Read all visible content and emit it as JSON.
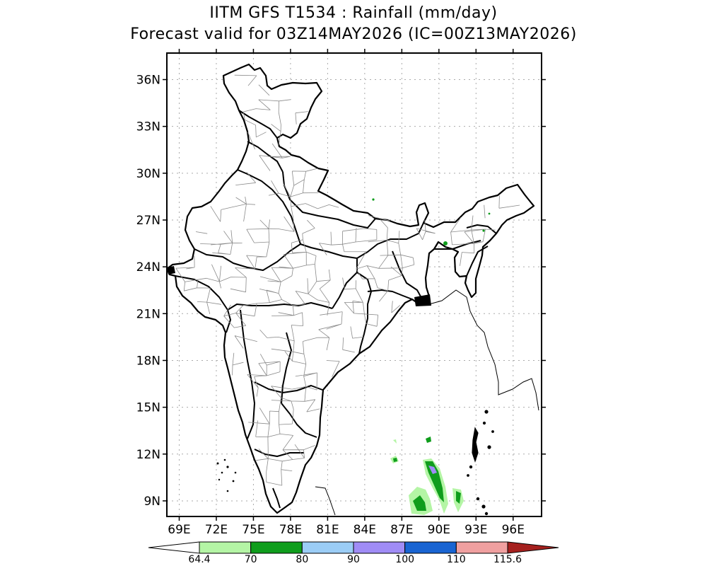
{
  "title": {
    "line1": "IITM GFS T1534 : Rainfall (mm/day)",
    "line2": "Forecast valid for 03Z14MAY2026 (IC=00Z13MAY2026)"
  },
  "map": {
    "lon_range": [
      68.0,
      98.3
    ],
    "lat_range": [
      8.0,
      37.7
    ],
    "grid": true,
    "lat_ticks": [
      {
        "value": 9,
        "label": "9N"
      },
      {
        "value": 12,
        "label": "12N"
      },
      {
        "value": 15,
        "label": "15N"
      },
      {
        "value": 18,
        "label": "18N"
      },
      {
        "value": 21,
        "label": "21N"
      },
      {
        "value": 24,
        "label": "24N"
      },
      {
        "value": 27,
        "label": "27N"
      },
      {
        "value": 30,
        "label": "30N"
      },
      {
        "value": 33,
        "label": "33N"
      },
      {
        "value": 36,
        "label": "36N"
      }
    ],
    "lon_ticks": [
      {
        "value": 69,
        "label": "69E"
      },
      {
        "value": 72,
        "label": "72E"
      },
      {
        "value": 75,
        "label": "75E"
      },
      {
        "value": 78,
        "label": "78E"
      },
      {
        "value": 81,
        "label": "81E"
      },
      {
        "value": 84,
        "label": "84E"
      },
      {
        "value": 87,
        "label": "87E"
      },
      {
        "value": 90,
        "label": "90E"
      },
      {
        "value": 93,
        "label": "93E"
      },
      {
        "value": 96,
        "label": "96E"
      }
    ]
  },
  "colorbar": {
    "labels": [
      "64.4",
      "70",
      "80",
      "90",
      "100",
      "110",
      "115.6"
    ],
    "colors": [
      "#ffffff",
      "#b4f5a5",
      "#0f9d1c",
      "#9bcdf6",
      "#a08cf6",
      "#1964d2",
      "#f0a0a0",
      "#a5201e"
    ]
  },
  "rain_colors": {
    "light_green": "#b4f5a5",
    "dark_green": "#0f9d1c",
    "purple": "#a08cf6"
  }
}
